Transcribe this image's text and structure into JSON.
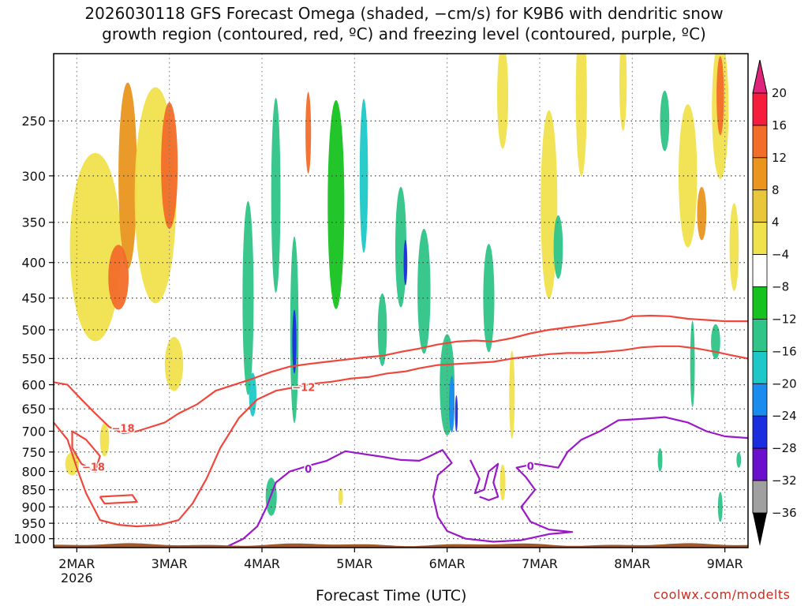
{
  "chart_data": {
    "type": "heatmap",
    "title": "2026030118 GFS Forecast Omega (shaded, −cm/s) for K9B6 with dendritic snow\ngrowth region (contoured, red, ºC) and freezing level (contoured, purple, ºC)",
    "xlabel": "Forecast Time (UTC)",
    "ylabel": "",
    "watermark": "coolwx.com/modelts",
    "x_ticks": [
      "2MAR",
      "3MAR",
      "4MAR",
      "5MAR",
      "6MAR",
      "7MAR",
      "8MAR",
      "9MAR"
    ],
    "x_tick_sublabel": "2026",
    "x_range_days": [
      1.75,
      9.25
    ],
    "y_ticks": [
      250,
      300,
      350,
      400,
      450,
      500,
      550,
      600,
      650,
      700,
      750,
      800,
      850,
      900,
      950,
      1000
    ],
    "y_range_hpa": [
      200,
      1030
    ],
    "colorbar": {
      "ticks": [
        20,
        16,
        12,
        8,
        4,
        -4,
        -8,
        -12,
        -16,
        -20,
        -24,
        -28,
        -32,
        -36
      ],
      "colors": [
        "#f51c3c",
        "#f26d2a",
        "#e9951e",
        "#e8c83a",
        "#f0e24c",
        "#ffffff",
        "#16c21f",
        "#2fc488",
        "#1ec8c8",
        "#1a8cf0",
        "#1a2ee0",
        "#6a0fcc",
        "#a010c8",
        "#a0a0a0"
      ],
      "top_arrow_color": "#e0237a",
      "bottom_arrow_color": "#000000"
    },
    "omega_patches": [
      {
        "t": 2.2,
        "p": 380,
        "dt": 0.55,
        "dp": 230,
        "v": 6
      },
      {
        "t": 2.55,
        "p": 300,
        "dt": 0.2,
        "dp": 180,
        "v": 10
      },
      {
        "t": 2.45,
        "p": 420,
        "dt": 0.22,
        "dp": 90,
        "v": 12
      },
      {
        "t": 2.85,
        "p": 320,
        "dt": 0.45,
        "dp": 220,
        "v": 6
      },
      {
        "t": 3.0,
        "p": 290,
        "dt": 0.18,
        "dp": 120,
        "v": 12
      },
      {
        "t": 3.05,
        "p": 560,
        "dt": 0.2,
        "dp": 100,
        "v": 5
      },
      {
        "t": 1.95,
        "p": 780,
        "dt": 0.15,
        "dp": 60,
        "v": 5
      },
      {
        "t": 2.3,
        "p": 720,
        "dt": 0.1,
        "dp": 80,
        "v": 5
      },
      {
        "t": 3.85,
        "p": 450,
        "dt": 0.12,
        "dp": 280,
        "v": -8
      },
      {
        "t": 3.9,
        "p": 620,
        "dt": 0.08,
        "dp": 90,
        "v": -14
      },
      {
        "t": 4.35,
        "p": 500,
        "dt": 0.09,
        "dp": 300,
        "v": -10
      },
      {
        "t": 4.35,
        "p": 520,
        "dt": 0.045,
        "dp": 110,
        "v": -22
      },
      {
        "t": 4.15,
        "p": 320,
        "dt": 0.1,
        "dp": 200,
        "v": -8
      },
      {
        "t": 4.5,
        "p": 260,
        "dt": 0.06,
        "dp": 70,
        "v": 12
      },
      {
        "t": 4.1,
        "p": 870,
        "dt": 0.12,
        "dp": 110,
        "v": -8
      },
      {
        "t": 4.8,
        "p": 330,
        "dt": 0.18,
        "dp": 220,
        "v": -7
      },
      {
        "t": 5.1,
        "p": 300,
        "dt": 0.09,
        "dp": 150,
        "v": -12
      },
      {
        "t": 5.5,
        "p": 380,
        "dt": 0.12,
        "dp": 150,
        "v": -10
      },
      {
        "t": 5.55,
        "p": 400,
        "dt": 0.04,
        "dp": 60,
        "v": -22
      },
      {
        "t": 5.3,
        "p": 500,
        "dt": 0.1,
        "dp": 120,
        "v": -8
      },
      {
        "t": 5.75,
        "p": 440,
        "dt": 0.14,
        "dp": 180,
        "v": -8
      },
      {
        "t": 6.0,
        "p": 600,
        "dt": 0.16,
        "dp": 200,
        "v": -10
      },
      {
        "t": 6.05,
        "p": 640,
        "dt": 0.06,
        "dp": 120,
        "v": -18
      },
      {
        "t": 6.1,
        "p": 660,
        "dt": 0.03,
        "dp": 80,
        "v": -22
      },
      {
        "t": 6.45,
        "p": 450,
        "dt": 0.12,
        "dp": 160,
        "v": -8
      },
      {
        "t": 6.7,
        "p": 620,
        "dt": 0.06,
        "dp": 180,
        "v": 5
      },
      {
        "t": 7.1,
        "p": 330,
        "dt": 0.18,
        "dp": 200,
        "v": 5
      },
      {
        "t": 7.2,
        "p": 380,
        "dt": 0.1,
        "dp": 80,
        "v": -8
      },
      {
        "t": 6.6,
        "p": 230,
        "dt": 0.12,
        "dp": 80,
        "v": 6
      },
      {
        "t": 7.45,
        "p": 230,
        "dt": 0.12,
        "dp": 120,
        "v": 6
      },
      {
        "t": 7.9,
        "p": 220,
        "dt": 0.08,
        "dp": 70,
        "v": 5
      },
      {
        "t": 8.35,
        "p": 250,
        "dt": 0.1,
        "dp": 50,
        "v": -8
      },
      {
        "t": 8.6,
        "p": 300,
        "dt": 0.2,
        "dp": 140,
        "v": 5
      },
      {
        "t": 8.75,
        "p": 340,
        "dt": 0.1,
        "dp": 60,
        "v": 10
      },
      {
        "t": 8.95,
        "p": 240,
        "dt": 0.18,
        "dp": 110,
        "v": 6
      },
      {
        "t": 8.95,
        "p": 230,
        "dt": 0.08,
        "dp": 60,
        "v": 12
      },
      {
        "t": 9.1,
        "p": 380,
        "dt": 0.1,
        "dp": 110,
        "v": 5
      },
      {
        "t": 8.65,
        "p": 560,
        "dt": 0.05,
        "dp": 160,
        "v": -8
      },
      {
        "t": 8.9,
        "p": 520,
        "dt": 0.1,
        "dp": 60,
        "v": -8
      },
      {
        "t": 8.3,
        "p": 770,
        "dt": 0.05,
        "dp": 60,
        "v": -8
      },
      {
        "t": 8.95,
        "p": 900,
        "dt": 0.05,
        "dp": 90,
        "v": -8
      },
      {
        "t": 9.15,
        "p": 770,
        "dt": 0.05,
        "dp": 40,
        "v": -8
      },
      {
        "t": 6.6,
        "p": 830,
        "dt": 0.06,
        "dp": 100,
        "v": 5
      },
      {
        "t": 4.85,
        "p": 870,
        "dt": 0.05,
        "dp": 50,
        "v": 5
      }
    ],
    "contours": [
      {
        "name": "DGZ -18 (upper, 2 MAR)",
        "kind": "dgz",
        "label": "−18",
        "label_at": [
          2.5,
          695
        ],
        "points": [
          [
            1.75,
            595
          ],
          [
            1.9,
            600
          ],
          [
            2.05,
            630
          ],
          [
            2.2,
            660
          ],
          [
            2.35,
            690
          ],
          [
            2.5,
            705
          ],
          [
            2.65,
            700
          ],
          [
            2.8,
            690
          ],
          [
            2.95,
            680
          ],
          [
            3.1,
            660
          ],
          [
            3.3,
            640
          ],
          [
            3.5,
            612
          ],
          [
            3.7,
            600
          ],
          [
            3.9,
            588
          ],
          [
            4.1,
            575
          ],
          [
            4.3,
            565
          ],
          [
            4.5,
            560
          ],
          [
            4.7,
            556
          ],
          [
            4.9,
            552
          ],
          [
            5.1,
            548
          ],
          [
            5.3,
            545
          ],
          [
            5.5,
            538
          ],
          [
            5.7,
            532
          ],
          [
            5.9,
            525
          ],
          [
            6.1,
            520
          ],
          [
            6.3,
            518
          ],
          [
            6.5,
            520
          ],
          [
            6.7,
            514
          ],
          [
            6.9,
            506
          ],
          [
            7.1,
            500
          ],
          [
            7.3,
            496
          ],
          [
            7.5,
            492
          ],
          [
            7.7,
            488
          ],
          [
            7.9,
            484
          ],
          [
            8.0,
            478
          ],
          [
            8.2,
            477
          ],
          [
            8.4,
            478
          ],
          [
            8.6,
            482
          ],
          [
            8.8,
            484
          ],
          [
            9.0,
            486
          ],
          [
            9.25,
            486
          ]
        ]
      },
      {
        "name": "DGZ -12",
        "kind": "dgz",
        "label": "−12",
        "label_at": [
          4.45,
          606
        ],
        "points": [
          [
            1.75,
            680
          ],
          [
            1.9,
            720
          ],
          [
            2.0,
            790
          ],
          [
            2.1,
            860
          ],
          [
            2.25,
            940
          ],
          [
            2.45,
            955
          ],
          [
            2.65,
            960
          ],
          [
            2.9,
            955
          ],
          [
            3.1,
            940
          ],
          [
            3.25,
            890
          ],
          [
            3.4,
            820
          ],
          [
            3.55,
            740
          ],
          [
            3.75,
            670
          ],
          [
            3.95,
            630
          ],
          [
            4.15,
            612
          ],
          [
            4.35,
            605
          ],
          [
            4.55,
            598
          ],
          [
            4.75,
            594
          ],
          [
            4.95,
            588
          ],
          [
            5.15,
            585
          ],
          [
            5.35,
            578
          ],
          [
            5.55,
            574
          ],
          [
            5.7,
            568
          ],
          [
            5.9,
            562
          ],
          [
            6.1,
            560
          ],
          [
            6.3,
            558
          ],
          [
            6.5,
            556
          ],
          [
            6.7,
            550
          ],
          [
            6.9,
            546
          ],
          [
            7.1,
            542
          ],
          [
            7.3,
            540
          ],
          [
            7.5,
            540
          ],
          [
            7.7,
            538
          ],
          [
            7.9,
            535
          ],
          [
            8.1,
            530
          ],
          [
            8.3,
            528
          ],
          [
            8.5,
            528
          ],
          [
            8.7,
            532
          ],
          [
            8.9,
            538
          ],
          [
            9.1,
            545
          ],
          [
            9.25,
            550
          ]
        ]
      },
      {
        "name": "DGZ -18 (closed loop)",
        "kind": "dgz",
        "label": "−18",
        "label_at": [
          2.18,
          790
        ],
        "points": [
          [
            1.95,
            700
          ],
          [
            2.1,
            720
          ],
          [
            2.25,
            760
          ],
          [
            2.2,
            800
          ],
          [
            2.05,
            780
          ],
          [
            1.95,
            740
          ],
          [
            1.95,
            700
          ]
        ]
      },
      {
        "name": "DGZ small loop",
        "kind": "dgz",
        "label": "",
        "label_at": [
          0,
          0
        ],
        "points": [
          [
            2.25,
            870
          ],
          [
            2.6,
            865
          ],
          [
            2.65,
            885
          ],
          [
            2.3,
            890
          ],
          [
            2.25,
            870
          ]
        ]
      },
      {
        "name": "Freezing level 0C",
        "kind": "frz",
        "label": "0",
        "label_at": [
          4.5,
          795
        ],
        "points": [
          [
            3.6,
            1030
          ],
          [
            3.8,
            1000
          ],
          [
            3.95,
            960
          ],
          [
            4.05,
            900
          ],
          [
            4.15,
            830
          ],
          [
            4.3,
            800
          ],
          [
            4.5,
            785
          ],
          [
            4.7,
            772
          ],
          [
            4.9,
            748
          ],
          [
            5.1,
            755
          ],
          [
            5.3,
            762
          ],
          [
            5.5,
            770
          ],
          [
            5.7,
            772
          ],
          [
            5.8,
            762
          ],
          [
            5.95,
            745
          ],
          [
            6.05,
            778
          ],
          [
            5.9,
            810
          ],
          [
            5.85,
            870
          ],
          [
            5.9,
            930
          ],
          [
            6.0,
            975
          ],
          [
            6.2,
            1000
          ],
          [
            6.5,
            1010
          ],
          [
            6.8,
            1005
          ],
          [
            7.1,
            985
          ],
          [
            7.35,
            978
          ],
          [
            7.1,
            970
          ],
          [
            6.9,
            945
          ],
          [
            6.8,
            900
          ],
          [
            6.95,
            850
          ],
          [
            6.85,
            815
          ],
          [
            6.75,
            790
          ],
          [
            6.95,
            780
          ],
          [
            7.2,
            790
          ],
          [
            7.3,
            750
          ],
          [
            7.45,
            720
          ],
          [
            7.65,
            700
          ],
          [
            7.85,
            675
          ],
          [
            8.1,
            672
          ],
          [
            8.35,
            668
          ],
          [
            8.6,
            680
          ],
          [
            8.8,
            700
          ],
          [
            9.0,
            712
          ],
          [
            9.25,
            716
          ]
        ]
      },
      {
        "name": "Freezing level squiggle",
        "kind": "frz",
        "label": "0",
        "label_at": [
          6.9,
          788
        ],
        "points": [
          [
            6.25,
            770
          ],
          [
            6.35,
            820
          ],
          [
            6.3,
            860
          ],
          [
            6.4,
            850
          ],
          [
            6.45,
            800
          ],
          [
            6.55,
            780
          ],
          [
            6.5,
            830
          ],
          [
            6.55,
            870
          ],
          [
            6.45,
            880
          ],
          [
            6.35,
            870
          ]
        ]
      }
    ]
  }
}
